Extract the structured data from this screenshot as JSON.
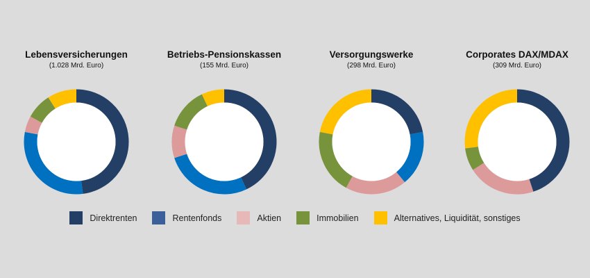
{
  "chart_data": {
    "type": "pie",
    "categories": [
      "Direktrenten",
      "Rentenfonds",
      "Aktien",
      "Immobilien",
      "Alternatives, Liquidität, sonstiges"
    ],
    "colors": [
      "#243f66",
      "#0070c0",
      "#dc9a9a",
      "#77933c",
      "#ffc000"
    ],
    "legend_position": "bottom",
    "charts": [
      {
        "title": "Lebensversicherungen",
        "subtitle": "(1.028 Mrd. Euro)",
        "values": [
          48,
          30,
          5,
          8,
          9
        ]
      },
      {
        "title": "Betriebs-Pensionskassen",
        "subtitle": "(155 Mrd. Euro)",
        "values": [
          43,
          27,
          10,
          13,
          7
        ]
      },
      {
        "title": "Versorgungswerke",
        "subtitle": "(298 Mrd. Euro)",
        "values": [
          22,
          17,
          19,
          20,
          22
        ]
      },
      {
        "title": "Corporates DAX/MDAX",
        "subtitle": "(309 Mrd. Euro)",
        "values": [
          45,
          0,
          21,
          7,
          27
        ]
      }
    ]
  }
}
